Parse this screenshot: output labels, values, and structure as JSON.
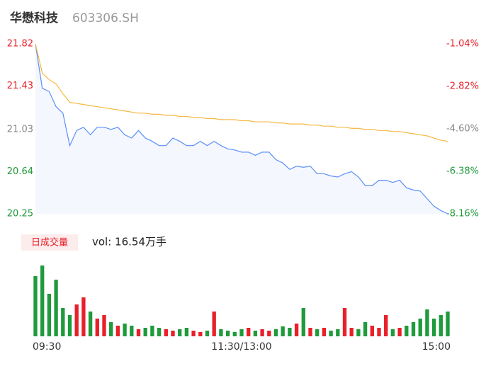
{
  "chart_data": {
    "type": "intraday",
    "title": "华懋科技",
    "subtitle": "603306.SH",
    "xlim": [
      0,
      240
    ],
    "xticks": [
      {
        "value": 0,
        "label": "09:30"
      },
      {
        "value": 120,
        "label": "11:30/13:00"
      },
      {
        "value": 240,
        "label": "15:00"
      }
    ],
    "x": [
      0,
      4,
      8,
      12,
      16,
      20,
      24,
      28,
      32,
      36,
      40,
      44,
      48,
      52,
      56,
      60,
      64,
      68,
      72,
      76,
      80,
      84,
      88,
      92,
      96,
      100,
      104,
      108,
      112,
      116,
      120,
      124,
      128,
      132,
      136,
      140,
      144,
      148,
      152,
      156,
      160,
      164,
      168,
      172,
      176,
      180,
      184,
      188,
      192,
      196,
      200,
      204,
      208,
      212,
      216,
      220,
      224,
      228,
      232,
      236,
      240
    ],
    "ylim": [
      20.25,
      21.82
    ],
    "yticks": [
      21.82,
      21.43,
      21.03,
      20.64,
      20.25
    ],
    "y2lim": [
      -8.16,
      -1.04
    ],
    "y2ticks": [
      {
        "value": -1.04,
        "label": "-1.04%"
      },
      {
        "value": -2.82,
        "label": "-2.82%"
      },
      {
        "value": -4.6,
        "label": "-4.60%"
      },
      {
        "value": -6.38,
        "label": "-6.38%"
      },
      {
        "value": -8.16,
        "label": "-8.16%"
      }
    ],
    "up_color": "#e8202a",
    "down_color": "#1f9a3c",
    "flat_color": "#888888",
    "series": [
      {
        "name": "price",
        "color": "#5b8ff9",
        "values": [
          21.82,
          21.41,
          21.38,
          21.24,
          21.18,
          20.88,
          21.02,
          21.05,
          20.98,
          21.05,
          21.05,
          21.03,
          21.05,
          20.98,
          20.95,
          21.02,
          20.95,
          20.92,
          20.88,
          20.88,
          20.95,
          20.92,
          20.88,
          20.88,
          20.92,
          20.88,
          20.92,
          20.88,
          20.85,
          20.84,
          20.82,
          20.82,
          20.79,
          20.82,
          20.82,
          20.75,
          20.72,
          20.66,
          20.69,
          20.68,
          20.69,
          20.62,
          20.62,
          20.6,
          20.59,
          20.62,
          20.64,
          20.59,
          20.51,
          20.51,
          20.56,
          20.56,
          20.54,
          20.56,
          20.49,
          20.47,
          20.46,
          20.39,
          20.32,
          20.28,
          20.25
        ]
      },
      {
        "name": "average",
        "color": "#f5b840",
        "values": [
          21.82,
          21.55,
          21.49,
          21.45,
          21.36,
          21.28,
          21.27,
          21.26,
          21.25,
          21.24,
          21.23,
          21.22,
          21.21,
          21.2,
          21.19,
          21.18,
          21.18,
          21.17,
          21.17,
          21.16,
          21.16,
          21.15,
          21.15,
          21.14,
          21.14,
          21.13,
          21.13,
          21.12,
          21.12,
          21.12,
          21.11,
          21.11,
          21.1,
          21.1,
          21.1,
          21.09,
          21.09,
          21.08,
          21.08,
          21.08,
          21.07,
          21.07,
          21.06,
          21.06,
          21.05,
          21.05,
          21.04,
          21.04,
          21.03,
          21.03,
          21.02,
          21.02,
          21.01,
          21.01,
          21.0,
          20.99,
          20.98,
          20.97,
          20.95,
          20.93,
          20.92
        ]
      }
    ],
    "volume_label": "日成交量",
    "volume_text": "vol: 16.54万手",
    "vol_ylim": [
      0,
      110
    ],
    "volume": [
      85,
      100,
      60,
      80,
      40,
      30,
      45,
      55,
      35,
      25,
      30,
      20,
      15,
      18,
      15,
      10,
      12,
      15,
      12,
      10,
      8,
      10,
      12,
      8,
      6,
      8,
      35,
      10,
      8,
      6,
      10,
      12,
      8,
      10,
      8,
      10,
      14,
      12,
      18,
      40,
      12,
      10,
      12,
      8,
      10,
      40,
      12,
      10,
      20,
      15,
      12,
      30,
      10,
      12,
      15,
      20,
      25,
      38,
      25,
      30,
      35
    ]
  }
}
